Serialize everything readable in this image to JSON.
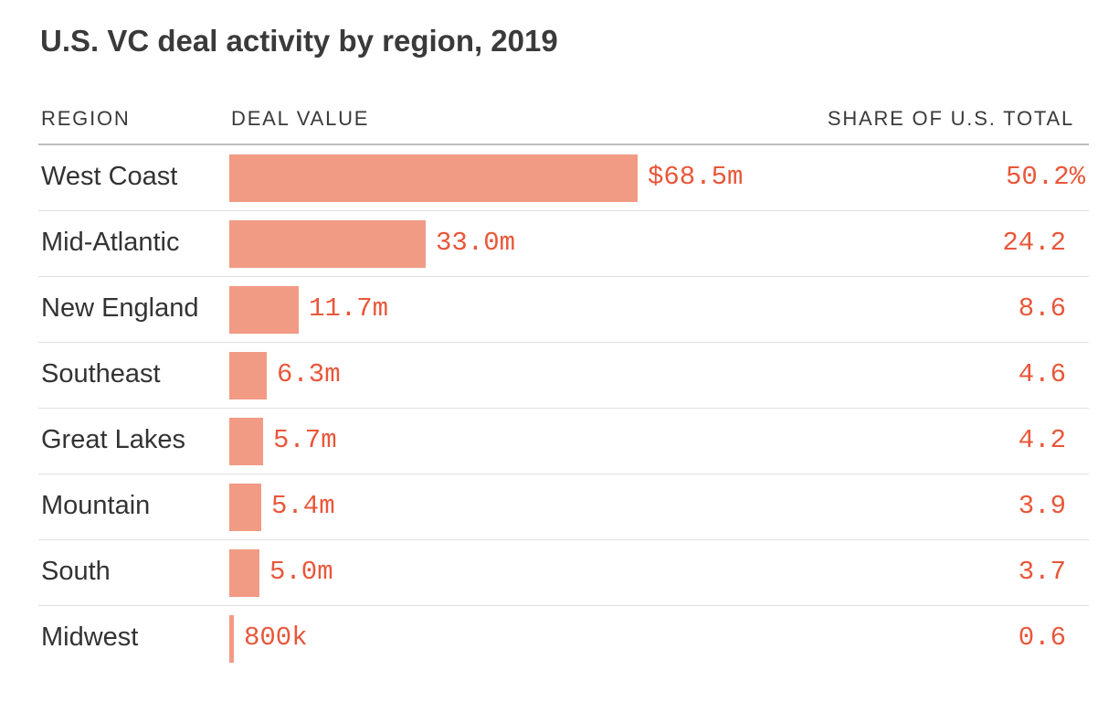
{
  "title": "U.S. VC deal activity by region, 2019",
  "columns": {
    "region": "REGION",
    "deal_value": "DEAL VALUE",
    "share": "SHARE OF U.S. TOTAL"
  },
  "colors": {
    "bar": "#f19a84",
    "value_text": "#e8573a"
  },
  "chart_data": {
    "type": "bar",
    "orientation": "horizontal",
    "title": "U.S. VC deal activity by region, 2019",
    "xlabel": "DEAL VALUE",
    "ylabel": "REGION",
    "categories": [
      "West Coast",
      "Mid-Atlantic",
      "New England",
      "Southeast",
      "Great Lakes",
      "Mountain",
      "South",
      "Midwest"
    ],
    "values": [
      68.5,
      33.0,
      11.7,
      6.3,
      5.7,
      5.4,
      5.0,
      0.8
    ],
    "value_labels": [
      "$68.5m",
      "33.0m",
      "11.7m",
      "6.3m",
      "5.7m",
      "5.4m",
      "5.0m",
      "800k"
    ],
    "share_of_total": [
      50.2,
      24.2,
      8.6,
      4.6,
      4.2,
      3.9,
      3.7,
      0.6
    ],
    "share_labels": [
      "50.2%",
      "24.2",
      "8.6",
      "4.6",
      "4.2",
      "3.9",
      "3.7",
      "0.6"
    ],
    "xlim": [
      0,
      68.5
    ],
    "grid": false,
    "legend": "none"
  }
}
